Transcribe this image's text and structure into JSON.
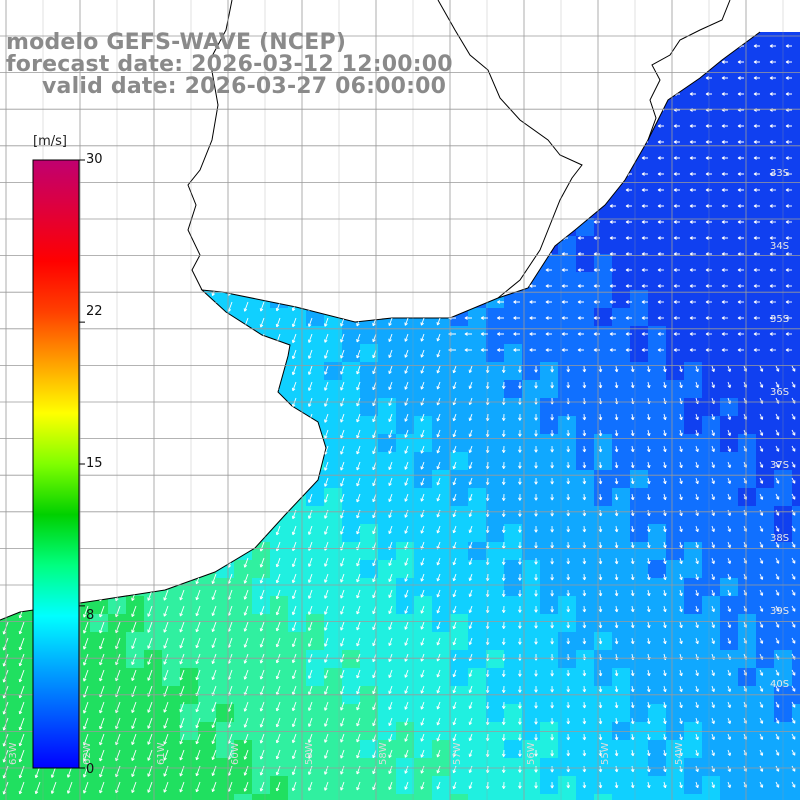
{
  "title": {
    "line1": "modelo GEFS-WAVE (NCEP)",
    "line2": "forecast date: 2026-03-12 12:00:00",
    "line3": "valid date: 2026-03-27 06:00:00"
  },
  "colorbar": {
    "unit": "[m/s]",
    "min": 0,
    "max": 30,
    "ticks": [
      "30",
      "22",
      "15",
      "8",
      "0"
    ],
    "tick_values": [
      30,
      22,
      15,
      8,
      0
    ],
    "colors": [
      "#0000ff",
      "#0055ff",
      "#00a8ff",
      "#00ffff",
      "#00ff80",
      "#00d000",
      "#80ff00",
      "#ffff00",
      "#ffa000",
      "#ff4000",
      "#ff0000",
      "#e0003a",
      "#c00070"
    ]
  },
  "map": {
    "field": "wind speed and direction",
    "lat_labels": [
      "33S",
      "34S",
      "35S",
      "36S",
      "37S",
      "38S",
      "39S",
      "40S"
    ],
    "lon_labels": [
      "63W",
      "62W",
      "61W",
      "60W",
      "59W",
      "58W",
      "57W",
      "56W",
      "55W",
      "54W"
    ],
    "land_color": "#ffffff",
    "grid_color": "#9a9a9a"
  }
}
